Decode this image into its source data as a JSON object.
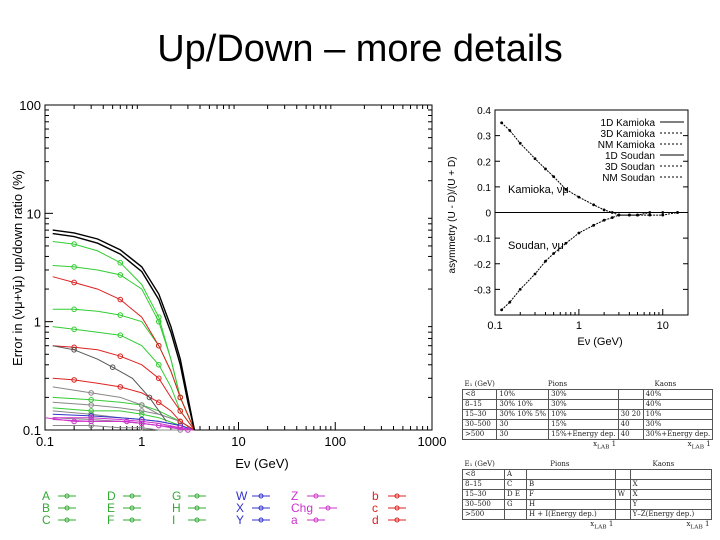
{
  "slide": {
    "title": "Up/Down – more details"
  },
  "chart_data": [
    {
      "type": "line",
      "xscale": "log",
      "yscale": "log",
      "xlim": [
        0.1,
        1000
      ],
      "ylim": [
        0.1,
        100
      ],
      "xlabel": "Eν (GeV)",
      "ylabel": "Error in (νμ+ν̄μ) up/down ratio (%)",
      "x_ticks": [
        "0.1",
        "1",
        "10",
        "100",
        "1000"
      ],
      "y_ticks": [
        "0.1",
        "1",
        "10",
        "100"
      ],
      "series": [
        {
          "name": "A",
          "color": "#888888",
          "x": [
            0.12,
            0.3,
            0.6,
            1.0,
            1.5,
            2.5,
            3.5
          ],
          "y": [
            0.18,
            0.17,
            0.16,
            0.15,
            0.14,
            0.12,
            0.1
          ]
        },
        {
          "name": "B",
          "color": "#888888",
          "x": [
            0.12,
            0.3,
            0.6,
            1.0,
            1.5,
            2.5,
            3.5
          ],
          "y": [
            0.15,
            0.14,
            0.13,
            0.125,
            0.12,
            0.11,
            0.1
          ]
        },
        {
          "name": "C",
          "color": "#888888",
          "x": [
            0.12,
            0.3,
            0.6,
            1.0,
            1.5,
            2.5,
            3.5
          ],
          "y": [
            0.13,
            0.125,
            0.12,
            0.115,
            0.11,
            0.105,
            0.1
          ]
        },
        {
          "name": "D",
          "color": "#33cc33",
          "x": [
            0.12,
            0.3,
            0.6,
            1.0,
            1.5,
            2.5,
            3.5
          ],
          "y": [
            0.2,
            0.19,
            0.18,
            0.17,
            0.15,
            0.12,
            0.1
          ]
        },
        {
          "name": "E",
          "color": "#33cc33",
          "x": [
            0.12,
            0.3,
            0.6,
            1.0,
            1.5,
            2.5,
            3.5
          ],
          "y": [
            0.16,
            0.15,
            0.15,
            0.14,
            0.13,
            0.11,
            0.1
          ]
        },
        {
          "name": "F",
          "color": "#33cc33",
          "x": [
            0.12,
            0.2,
            0.35,
            0.6,
            1.0,
            1.5,
            2.0,
            2.5,
            3.5
          ],
          "y": [
            1.3,
            1.3,
            1.25,
            1.15,
            1.0,
            0.6,
            0.35,
            0.2,
            0.1
          ]
        },
        {
          "name": "G",
          "color": "#33cc33",
          "x": [
            0.12,
            0.2,
            0.35,
            0.6,
            1.0,
            1.5,
            2.0,
            2.5,
            3.5
          ],
          "y": [
            5.5,
            5.2,
            4.5,
            3.5,
            2.2,
            1.1,
            0.45,
            0.2,
            0.1
          ]
        },
        {
          "name": "H",
          "color": "#33cc33",
          "x": [
            0.12,
            0.2,
            0.35,
            0.6,
            1.0,
            1.5,
            2.0,
            2.5,
            3.5
          ],
          "y": [
            3.3,
            3.2,
            3.0,
            2.7,
            2.0,
            1.0,
            0.45,
            0.2,
            0.1
          ]
        },
        {
          "name": "I",
          "color": "#33cc33",
          "x": [
            0.12,
            0.2,
            0.35,
            0.6,
            1.0,
            1.5,
            2.0,
            2.5,
            3.5
          ],
          "y": [
            0.9,
            0.85,
            0.8,
            0.75,
            0.6,
            0.4,
            0.25,
            0.15,
            0.1
          ]
        },
        {
          "name": "W",
          "color": "#888888",
          "x": [
            0.12,
            0.3,
            0.6,
            1.0,
            1.5,
            2.5,
            3.5
          ],
          "y": [
            0.11,
            0.11,
            0.105,
            0.105,
            0.1,
            0.1,
            0.1
          ]
        },
        {
          "name": "X",
          "color": "#888888",
          "x": [
            0.12,
            0.3,
            0.6,
            1.0,
            1.5,
            2.5,
            3.5
          ],
          "y": [
            0.25,
            0.22,
            0.2,
            0.17,
            0.14,
            0.12,
            0.1
          ]
        },
        {
          "name": "Y",
          "color": "#3333cc",
          "x": [
            0.12,
            0.3,
            0.6,
            1.0,
            1.5,
            2.5,
            3.5
          ],
          "y": [
            0.14,
            0.135,
            0.13,
            0.125,
            0.12,
            0.11,
            0.1
          ]
        },
        {
          "name": "Z",
          "color": "#cc33cc",
          "x": [
            0.12,
            0.3,
            0.6,
            1.0,
            1.5,
            2.5,
            3.5
          ],
          "y": [
            0.13,
            0.13,
            0.125,
            0.12,
            0.115,
            0.105,
            0.1
          ]
        },
        {
          "name": "Chg",
          "color": "#cc33cc",
          "x": [
            0.1,
            0.2,
            0.4,
            0.7,
            1.0,
            1.5,
            2.0,
            3.0
          ],
          "y": [
            0.13,
            0.12,
            0.12,
            0.12,
            0.115,
            0.11,
            0.105,
            0.1
          ]
        },
        {
          "name": "a",
          "color": "#cc33cc",
          "x": [
            0.12,
            0.3,
            0.6,
            1.0,
            1.5,
            2.5,
            3.5
          ],
          "y": [
            0.125,
            0.12,
            0.12,
            0.115,
            0.11,
            0.105,
            0.1
          ]
        },
        {
          "name": "b",
          "color": "#dd2222",
          "x": [
            0.12,
            0.2,
            0.35,
            0.6,
            1.0,
            1.5,
            2.0,
            2.5,
            3.5
          ],
          "y": [
            2.6,
            2.3,
            2.0,
            1.6,
            1.1,
            0.6,
            0.35,
            0.2,
            0.1
          ]
        },
        {
          "name": "c",
          "color": "#dd2222",
          "x": [
            0.12,
            0.2,
            0.35,
            0.6,
            1.0,
            1.5,
            2.0,
            2.5,
            3.5
          ],
          "y": [
            0.6,
            0.58,
            0.55,
            0.48,
            0.4,
            0.3,
            0.2,
            0.15,
            0.1
          ]
        },
        {
          "name": "d",
          "color": "#dd2222",
          "x": [
            0.12,
            0.2,
            0.35,
            0.6,
            1.0,
            1.5,
            2.0,
            2.5,
            3.5
          ],
          "y": [
            0.3,
            0.29,
            0.27,
            0.25,
            0.22,
            0.18,
            0.15,
            0.12,
            0.1
          ]
        },
        {
          "name": "",
          "color": "#000000",
          "x": [
            0.12,
            0.2,
            0.35,
            0.6,
            1.0,
            1.5,
            2.0,
            2.5,
            3.0,
            3.5
          ],
          "y": [
            7.0,
            6.6,
            5.8,
            4.6,
            3.2,
            1.8,
            0.9,
            0.45,
            0.2,
            0.1
          ]
        },
        {
          "name": "",
          "color": "#000000",
          "x": [
            0.12,
            0.2,
            0.35,
            0.6,
            1.0,
            1.5,
            2.0,
            2.5,
            3.0,
            3.5
          ],
          "y": [
            6.5,
            6.1,
            5.3,
            4.2,
            2.9,
            1.6,
            0.8,
            0.4,
            0.18,
            0.1
          ]
        },
        {
          "name": "",
          "color": "#555555",
          "x": [
            0.12,
            0.2,
            0.35,
            0.5,
            0.8,
            1.2,
            1.8
          ],
          "y": [
            0.6,
            0.55,
            0.45,
            0.38,
            0.3,
            0.2,
            0.12
          ]
        }
      ],
      "legend": [
        {
          "label": "A",
          "color": "#33aa33"
        },
        {
          "label": "B",
          "color": "#33aa33"
        },
        {
          "label": "C",
          "color": "#33aa33"
        },
        {
          "label": "D",
          "color": "#33aa33"
        },
        {
          "label": "E",
          "color": "#33aa33"
        },
        {
          "label": "F",
          "color": "#33aa33"
        },
        {
          "label": "G",
          "color": "#33aa33"
        },
        {
          "label": "H",
          "color": "#33aa33"
        },
        {
          "label": "I",
          "color": "#33aa33"
        },
        {
          "label": "W",
          "color": "#3333cc"
        },
        {
          "label": "X",
          "color": "#3333cc"
        },
        {
          "label": "Y",
          "color": "#3333cc"
        },
        {
          "label": "Z",
          "color": "#cc33cc"
        },
        {
          "label": "Chg",
          "color": "#cc33cc"
        },
        {
          "label": "a",
          "color": "#cc33cc"
        },
        {
          "label": "b",
          "color": "#dd2222"
        },
        {
          "label": "c",
          "color": "#dd2222"
        },
        {
          "label": "d",
          "color": "#dd2222"
        }
      ]
    },
    {
      "type": "scatter",
      "xscale": "log",
      "xlim": [
        0.1,
        20
      ],
      "ylim": [
        -0.4,
        0.4
      ],
      "xlabel": "Eν (GeV)",
      "ylabel": "asymmetry   (U - D)/(U + D)",
      "x_ticks": [
        "0.1",
        "1",
        "10"
      ],
      "y_ticks": [
        "0.4",
        "0.3",
        "0.2",
        "0.1",
        "0",
        "-0.1",
        "-0.2",
        "-0.3"
      ],
      "annotations": [
        "Kamioka, νμ",
        "Soudan, νμ"
      ],
      "legend_entries": [
        "1D Kamioka",
        "3D Kamioka",
        "NM Kamioka",
        "1D Soudan",
        "3D Soudan",
        "NM Soudan"
      ],
      "series": [
        {
          "name": "Kamioka",
          "x": [
            0.12,
            0.15,
            0.2,
            0.3,
            0.4,
            0.5,
            0.7,
            1.0,
            1.5,
            2.0,
            2.5,
            3,
            4,
            5,
            7,
            10,
            15
          ],
          "y": [
            0.35,
            0.32,
            0.27,
            0.21,
            0.17,
            0.14,
            0.09,
            0.06,
            0.03,
            0.01,
            0.0,
            -0.01,
            -0.01,
            -0.01,
            -0.01,
            -0.01,
            0.0
          ]
        },
        {
          "name": "Soudan",
          "x": [
            0.12,
            0.15,
            0.2,
            0.3,
            0.4,
            0.5,
            0.7,
            1.0,
            1.5,
            2.0,
            2.5,
            3,
            4,
            5,
            7,
            10,
            15
          ],
          "y": [
            -0.38,
            -0.35,
            -0.3,
            -0.24,
            -0.19,
            -0.16,
            -0.12,
            -0.08,
            -0.05,
            -0.03,
            -0.02,
            -0.01,
            -0.01,
            -0.01,
            0.0,
            0.0,
            0.0
          ]
        }
      ]
    }
  ],
  "pions_kaons_table_1": {
    "e_header": "E₁ (GeV)",
    "pions": "Pions",
    "kaons": "Kaons",
    "rows": [
      [
        "<8",
        "10%",
        "30%",
        "",
        "40%"
      ],
      [
        "8–15",
        "30%  10%",
        "30%",
        "",
        "40%"
      ],
      [
        "15–30",
        "30%  10%  5%",
        "10%",
        "30  20",
        "10%"
      ],
      [
        "30–500",
        "30",
        "15%",
        "40",
        "30%"
      ],
      [
        ">500",
        "30",
        "15%+Energy dep.",
        "40",
        "30%+Energy dep."
      ]
    ],
    "x_axis": "x",
    "x_sub": "LAB",
    "x_ticks": [
      "0",
      "1",
      "0",
      "1"
    ]
  },
  "pions_kaons_table_2": {
    "e_header": "E₁ (GeV)",
    "pions": "Pions",
    "kaons": "Kaons",
    "rows": [
      [
        "<8",
        "A",
        "",
        "",
        ""
      ],
      [
        "8–15",
        "C",
        "B",
        "",
        "X"
      ],
      [
        "15–30",
        "D  E",
        "F",
        "W",
        "X"
      ],
      [
        "30–500",
        "G",
        "H",
        "",
        "Y"
      ],
      [
        ">500",
        "",
        "H + I(Energy dep.)",
        "",
        "Y–Z(Energy dep.)"
      ]
    ],
    "x_axis": "x",
    "x_sub": "LAB",
    "x_ticks": [
      "0",
      "1",
      "0",
      "1"
    ]
  }
}
